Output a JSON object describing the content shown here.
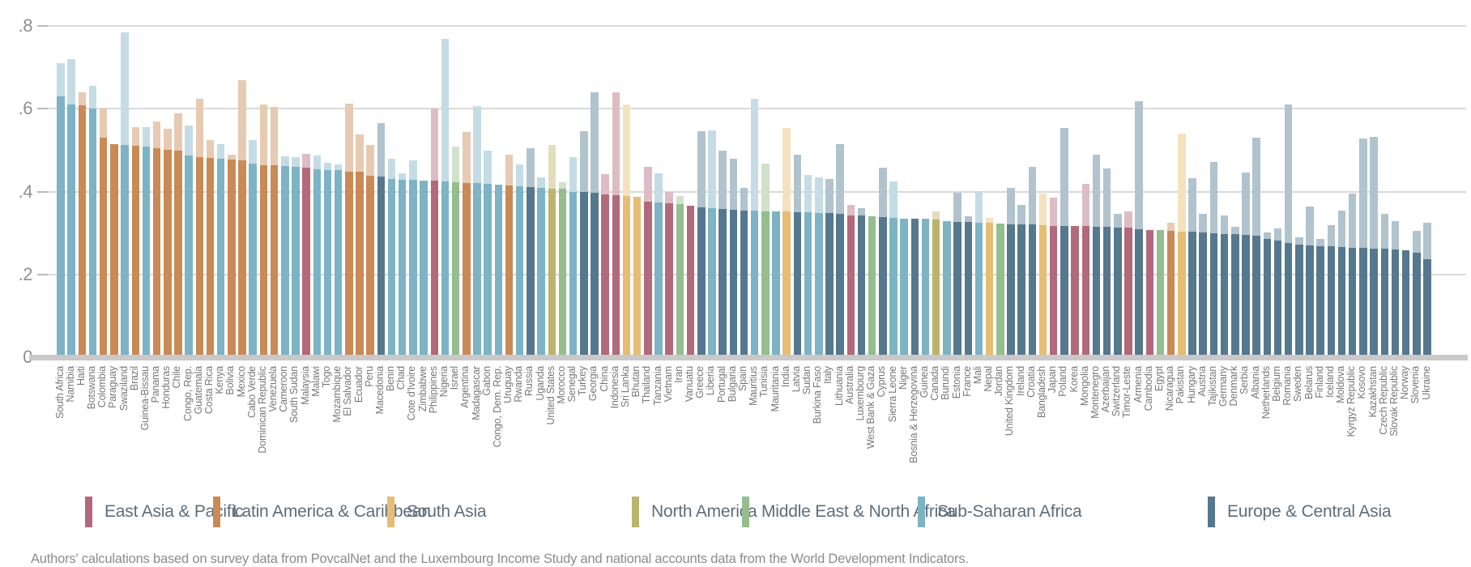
{
  "caption": "Authors' calculations based on survey data from PovcalNet and the Luxembourg Income Study and national accounts data from the World Development Indicators.",
  "chart_data": {
    "type": "bar",
    "title": "",
    "xlabel": "",
    "ylabel": "",
    "ylim": [
      0,
      0.8
    ],
    "grid": "horizontal",
    "legend_position": "bottom",
    "yticks": [
      {
        "label": ".8",
        "value": 0.8
      },
      {
        "label": ".6",
        "value": 0.6
      },
      {
        "label": ".4",
        "value": 0.4
      },
      {
        "label": ".2",
        "value": 0.2
      },
      {
        "label": "0",
        "value": 0.0
      }
    ],
    "series_note": {
      "solid_bar": "survey data",
      "light_bar": "national accounts data"
    },
    "regions": {
      "EAP": {
        "label": "East Asia & Pacific",
        "color": "#b2697b",
        "light": "#ddbcc5"
      },
      "LAC": {
        "label": "Latin America & Caribbean",
        "color": "#c98a56",
        "light": "#e7cab2"
      },
      "SA": {
        "label": "South Asia",
        "color": "#e6bd72",
        "light": "#f4e2bf"
      },
      "NA": {
        "label": "North America",
        "color": "#b9b56d",
        "light": "#e0debd"
      },
      "MENA": {
        "label": "Middle East & North Africa",
        "color": "#95bd8f",
        "light": "#d0e1cc"
      },
      "SSA": {
        "label": "Sub-Saharan Africa",
        "color": "#7db3c5",
        "light": "#c5dce4"
      },
      "ECA": {
        "label": "Europe & Central Asia",
        "color": "#56788e",
        "light": "#b1c3cd"
      }
    },
    "legend_order": [
      "EAP",
      "LAC",
      "SA",
      "NA",
      "MENA",
      "SSA",
      "ECA"
    ],
    "countries_columns": [
      "name",
      "region",
      "survey",
      "national_accounts"
    ],
    "countries": [
      [
        "South Africa",
        "SSA",
        0.63,
        0.71
      ],
      [
        "Namibia",
        "SSA",
        0.61,
        0.72
      ],
      [
        "Haiti",
        "LAC",
        0.608,
        0.64
      ],
      [
        "Botswana",
        "SSA",
        0.6,
        0.655
      ],
      [
        "Colombia",
        "LAC",
        0.53,
        0.6
      ],
      [
        "Paraguay",
        "LAC",
        0.515
      ],
      [
        "Swaziland",
        "SSA",
        0.512,
        0.785
      ],
      [
        "Brazil",
        "LAC",
        0.51,
        0.555
      ],
      [
        "Guinea-Bissau",
        "SSA",
        0.508,
        0.555
      ],
      [
        "Panama",
        "LAC",
        0.505,
        0.57
      ],
      [
        "Honduras",
        "LAC",
        0.502,
        0.552
      ],
      [
        "Chile",
        "LAC",
        0.5,
        0.59
      ],
      [
        "Congo, Rep.",
        "SSA",
        0.487,
        0.56
      ],
      [
        "Guatemala",
        "LAC",
        0.484,
        0.625
      ],
      [
        "Costa Rica",
        "LAC",
        0.481,
        0.525
      ],
      [
        "Kenya",
        "SSA",
        0.48,
        0.515
      ],
      [
        "Bolivia",
        "LAC",
        0.478,
        0.49
      ],
      [
        "Mexico",
        "LAC",
        0.475,
        0.67
      ],
      [
        "Cabo Verde",
        "SSA",
        0.467,
        0.525
      ],
      [
        "Dominican Republic",
        "LAC",
        0.464,
        0.61
      ],
      [
        "Venezuela",
        "LAC",
        0.463,
        0.605
      ],
      [
        "Cameroon",
        "SSA",
        0.462,
        0.486
      ],
      [
        "South Sudan",
        "SSA",
        0.46,
        0.483
      ],
      [
        "Malaysia",
        "EAP",
        0.458,
        0.492
      ],
      [
        "Malawi",
        "SSA",
        0.455,
        0.488
      ],
      [
        "Togo",
        "SSA",
        0.453,
        0.469
      ],
      [
        "Mozambique",
        "SSA",
        0.452,
        0.465
      ],
      [
        "El Salvador",
        "LAC",
        0.449,
        0.612
      ],
      [
        "Ecuador",
        "LAC",
        0.448,
        0.538
      ],
      [
        "Peru",
        "LAC",
        0.438,
        0.513
      ],
      [
        "Macedonia",
        "ECA",
        0.437,
        0.566
      ],
      [
        "Benin",
        "SSA",
        0.43,
        0.48
      ],
      [
        "Chad",
        "SSA",
        0.429,
        0.445
      ],
      [
        "Cote d'Ivoire",
        "SSA",
        0.428,
        0.476
      ],
      [
        "Zimbabwe",
        "SSA",
        0.427
      ],
      [
        "Philippines",
        "EAP",
        0.426,
        0.6
      ],
      [
        "Nigeria",
        "SSA",
        0.424,
        0.77
      ],
      [
        "Israel",
        "MENA",
        0.422,
        0.508
      ],
      [
        "Argentina",
        "LAC",
        0.421,
        0.545
      ],
      [
        "Madagascar",
        "SSA",
        0.42,
        0.607
      ],
      [
        "Gabon",
        "SSA",
        0.419,
        0.5
      ],
      [
        "Congo, Dem. Rep.",
        "SSA",
        0.417
      ],
      [
        "Uruguay",
        "LAC",
        0.414,
        0.49
      ],
      [
        "Rwanda",
        "SSA",
        0.413,
        0.465
      ],
      [
        "Russia",
        "ECA",
        0.411,
        0.505
      ],
      [
        "Uganda",
        "SSA",
        0.41,
        0.435
      ],
      [
        "United States",
        "NA",
        0.408,
        0.513
      ],
      [
        "Morocco",
        "MENA",
        0.407,
        0.422
      ],
      [
        "Senegal",
        "SSA",
        0.399,
        0.483
      ],
      [
        "Turkey",
        "ECA",
        0.399,
        0.547
      ],
      [
        "Georgia",
        "ECA",
        0.398,
        0.64
      ],
      [
        "China",
        "EAP",
        0.394,
        0.443
      ],
      [
        "Indonesia",
        "EAP",
        0.392,
        0.64
      ],
      [
        "Sri Lanka",
        "SA",
        0.39,
        0.61
      ],
      [
        "Bhutan",
        "SA",
        0.388
      ],
      [
        "Thailand",
        "EAP",
        0.375,
        0.46
      ],
      [
        "Tanzania",
        "SSA",
        0.373,
        0.445
      ],
      [
        "Vietnam",
        "EAP",
        0.371,
        0.4
      ],
      [
        "Iran",
        "MENA",
        0.369,
        0.39
      ],
      [
        "Vanuatu",
        "EAP",
        0.367
      ],
      [
        "Greece",
        "ECA",
        0.363,
        0.547
      ],
      [
        "Liberia",
        "SSA",
        0.361,
        0.548
      ],
      [
        "Portugal",
        "ECA",
        0.358,
        0.5
      ],
      [
        "Bulgaria",
        "ECA",
        0.357,
        0.48
      ],
      [
        "Spain",
        "ECA",
        0.355,
        0.41
      ],
      [
        "Mauritius",
        "SSA",
        0.354,
        0.625
      ],
      [
        "Tunisia",
        "MENA",
        0.353,
        0.467
      ],
      [
        "Mauritania",
        "SSA",
        0.353
      ],
      [
        "India",
        "SA",
        0.352,
        0.553
      ],
      [
        "Latvia",
        "ECA",
        0.35,
        0.49
      ],
      [
        "Sudan",
        "SSA",
        0.35,
        0.44
      ],
      [
        "Burkina Faso",
        "SSA",
        0.349,
        0.435
      ],
      [
        "Italy",
        "ECA",
        0.348,
        0.43
      ],
      [
        "Lithuania",
        "ECA",
        0.347,
        0.515
      ],
      [
        "Australia",
        "EAP",
        0.343,
        0.368
      ],
      [
        "Luxembourg",
        "ECA",
        0.342,
        0.36
      ],
      [
        "West Bank & Gaza",
        "MENA",
        0.34
      ],
      [
        "Cyprus",
        "ECA",
        0.338,
        0.458
      ],
      [
        "Sierra Leone",
        "SSA",
        0.336,
        0.425
      ],
      [
        "Niger",
        "SSA",
        0.335
      ],
      [
        "Bosnia & Herzegovina",
        "ECA",
        0.335
      ],
      [
        "Guinea",
        "SSA",
        0.334
      ],
      [
        "Canada",
        "NA",
        0.332,
        0.352
      ],
      [
        "Burundi",
        "SSA",
        0.329
      ],
      [
        "Estonia",
        "ECA",
        0.327,
        0.397
      ],
      [
        "France",
        "ECA",
        0.326,
        0.34
      ],
      [
        "Mali",
        "SSA",
        0.325,
        0.402
      ],
      [
        "Nepal",
        "SA",
        0.324,
        0.336
      ],
      [
        "Jordan",
        "MENA",
        0.323
      ],
      [
        "United Kingdom",
        "ECA",
        0.322,
        0.41
      ],
      [
        "Ireland",
        "ECA",
        0.322,
        0.368
      ],
      [
        "Croatia",
        "ECA",
        0.321,
        0.46
      ],
      [
        "Bangladesh",
        "SA",
        0.319,
        0.395
      ],
      [
        "Japan",
        "EAP",
        0.318,
        0.386
      ],
      [
        "Poland",
        "ECA",
        0.318,
        0.554
      ],
      [
        "Korea",
        "EAP",
        0.317
      ],
      [
        "Mongolia",
        "EAP",
        0.317,
        0.419
      ],
      [
        "Montenegro",
        "ECA",
        0.316,
        0.489
      ],
      [
        "Azerbaijan",
        "ECA",
        0.315,
        0.456
      ],
      [
        "Switzerland",
        "ECA",
        0.314,
        0.346
      ],
      [
        "Timor-Leste",
        "EAP",
        0.313,
        0.353
      ],
      [
        "Armenia",
        "ECA",
        0.31,
        0.618
      ],
      [
        "Cambodia",
        "EAP",
        0.307
      ],
      [
        "Egypt",
        "MENA",
        0.307
      ],
      [
        "Nicaragua",
        "LAC",
        0.305,
        0.325
      ],
      [
        "Pakistan",
        "SA",
        0.304,
        0.541
      ],
      [
        "Hungary",
        "ECA",
        0.303,
        0.433
      ],
      [
        "Austria",
        "ECA",
        0.301,
        0.347
      ],
      [
        "Tajikistan",
        "ECA",
        0.3,
        0.472
      ],
      [
        "Germany",
        "ECA",
        0.298,
        0.342
      ],
      [
        "Denmark",
        "ECA",
        0.297,
        0.315
      ],
      [
        "Serbia",
        "ECA",
        0.295,
        0.446
      ],
      [
        "Albania",
        "ECA",
        0.293,
        0.53
      ],
      [
        "Netherlands",
        "ECA",
        0.286,
        0.302
      ],
      [
        "Belgium",
        "ECA",
        0.281,
        0.312
      ],
      [
        "Romania",
        "ECA",
        0.276,
        0.61
      ],
      [
        "Sweden",
        "ECA",
        0.272,
        0.29
      ],
      [
        "Belarus",
        "ECA",
        0.27,
        0.365
      ],
      [
        "Finland",
        "ECA",
        0.269,
        0.285
      ],
      [
        "Iceland",
        "ECA",
        0.268,
        0.319
      ],
      [
        "Moldova",
        "ECA",
        0.266,
        0.355
      ],
      [
        "Kyrgyz Republic",
        "ECA",
        0.265,
        0.395
      ],
      [
        "Kosovo",
        "ECA",
        0.264,
        0.528
      ],
      [
        "Kazakhstan",
        "ECA",
        0.263,
        0.532
      ],
      [
        "Czech Republic",
        "ECA",
        0.262,
        0.346
      ],
      [
        "Slovak Republic",
        "ECA",
        0.26,
        0.329
      ],
      [
        "Norway",
        "ECA",
        0.258
      ],
      [
        "Slovenia",
        "ECA",
        0.252,
        0.306
      ],
      [
        "Ukraine",
        "ECA",
        0.237,
        0.324
      ]
    ]
  }
}
